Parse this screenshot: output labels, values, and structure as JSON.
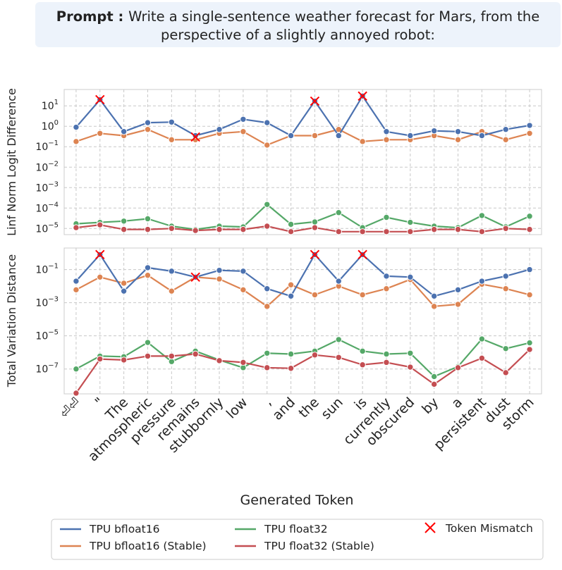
{
  "prompt": {
    "label": "Prompt",
    "line1": "Write a single-sentence weather forecast for Mars, from the",
    "line2": "perspective of a slightly annoyed robot:"
  },
  "chart_data": [
    {
      "type": "line",
      "ylabel": "Linf Norm Logit Difference",
      "yscale": "log",
      "ylim": [
        4e-06,
        60
      ],
      "ytick_labels": [
        "10^-5",
        "10^-4",
        "10^-3",
        "10^-2",
        "10^-1",
        "10^0",
        "10^1"
      ],
      "grid": true,
      "categories": [
        "⏎⏎",
        "\"",
        "The",
        "atmospheric",
        "pressure",
        "remains",
        "stubbornly",
        "low",
        ",",
        "and",
        "the",
        "sun",
        "is",
        "currently",
        "obscured",
        "by",
        "a",
        "persistent",
        "dust",
        "storm"
      ],
      "series": [
        {
          "name": "TPU bfloat16",
          "color": "#4c72b0",
          "values": [
            0.9,
            20,
            0.55,
            1.5,
            1.6,
            0.35,
            0.7,
            2.2,
            1.5,
            0.35,
            17,
            0.35,
            30,
            0.55,
            0.35,
            0.6,
            0.55,
            0.35,
            0.7,
            1.1
          ]
        },
        {
          "name": "TPU bfloat16 (Stable)",
          "color": "#dd8452",
          "values": [
            0.18,
            0.45,
            0.35,
            0.7,
            0.22,
            0.22,
            0.45,
            0.55,
            0.12,
            0.35,
            0.35,
            0.7,
            0.18,
            0.22,
            0.22,
            0.35,
            0.22,
            0.55,
            0.22,
            0.45
          ]
        },
        {
          "name": "TPU float32",
          "color": "#55a868",
          "values": [
            1.7e-05,
            2e-05,
            2.3e-05,
            3e-05,
            1.3e-05,
            9e-06,
            1.3e-05,
            1.2e-05,
            0.00015,
            1.6e-05,
            2.1e-05,
            6e-05,
            1.1e-05,
            3.5e-05,
            2e-05,
            1.3e-05,
            1.1e-05,
            4.3e-05,
            1.2e-05,
            4e-05
          ]
        },
        {
          "name": "TPU float32 (Stable)",
          "color": "#c44e52",
          "values": [
            1.1e-05,
            1.5e-05,
            9e-06,
            9e-06,
            1e-05,
            8e-06,
            9e-06,
            9e-06,
            1.3e-05,
            7e-06,
            1.1e-05,
            7e-06,
            7e-06,
            7e-06,
            7e-06,
            9e-06,
            9e-06,
            7e-06,
            1e-05,
            9e-06
          ]
        }
      ],
      "mismatch_points": [
        {
          "x": "\"",
          "y": 20
        },
        {
          "x": "remains",
          "y": 0.3
        },
        {
          "x": "the",
          "y": 17
        },
        {
          "x": "is",
          "y": 30
        }
      ]
    },
    {
      "type": "line",
      "ylabel": "Total Variation Distance",
      "xlabel": "Generated Token",
      "yscale": "log",
      "ylim": [
        3e-09,
        2
      ],
      "ytick_labels": [
        "10^-7",
        "10^-5",
        "10^-3",
        "10^-1"
      ],
      "grid": true,
      "series": [
        {
          "name": "TPU bfloat16",
          "color": "#4c72b0",
          "values": [
            0.02,
            0.8,
            0.005,
            0.13,
            0.08,
            0.035,
            0.09,
            0.08,
            0.007,
            0.0025,
            0.8,
            0.02,
            0.8,
            0.04,
            0.035,
            0.0025,
            0.006,
            0.02,
            0.04,
            0.1
          ]
        },
        {
          "name": "TPU bfloat16 (Stable)",
          "color": "#dd8452",
          "values": [
            0.006,
            0.035,
            0.015,
            0.045,
            0.005,
            0.035,
            0.027,
            0.006,
            0.0006,
            0.012,
            0.003,
            0.01,
            0.003,
            0.007,
            0.025,
            0.0006,
            0.0008,
            0.013,
            0.007,
            0.003
          ]
        },
        {
          "name": "TPU float32",
          "color": "#55a868",
          "values": [
            1e-07,
            6e-07,
            5.5e-07,
            4e-06,
            2.8e-07,
            1.2e-06,
            3.5e-07,
            1.2e-07,
            9e-07,
            8e-07,
            1.2e-06,
            6e-06,
            1.2e-06,
            8e-07,
            9e-07,
            3.5e-08,
            1.4e-07,
            6.5e-06,
            1.7e-06,
            3.8e-06
          ]
        },
        {
          "name": "TPU float32 (Stable)",
          "color": "#c44e52",
          "values": [
            3.5e-09,
            4e-07,
            3.5e-07,
            6e-07,
            6e-07,
            8e-07,
            3.2e-07,
            2.5e-07,
            1.2e-07,
            1.1e-07,
            7e-07,
            5e-07,
            1.8e-07,
            2.5e-07,
            1.3e-07,
            1.2e-08,
            1.2e-07,
            4.5e-07,
            6e-08,
            1.5e-06
          ]
        }
      ],
      "mismatch_points": [
        {
          "x": "\"",
          "y": 0.8
        },
        {
          "x": "remains",
          "y": 0.035
        },
        {
          "x": "the",
          "y": 0.8
        },
        {
          "x": "is",
          "y": 0.8
        }
      ]
    }
  ],
  "legend": {
    "entries": [
      {
        "label": "TPU bfloat16",
        "color": "#4c72b0",
        "kind": "line"
      },
      {
        "label": "TPU bfloat16 (Stable)",
        "color": "#dd8452",
        "kind": "line"
      },
      {
        "label": "TPU float32",
        "color": "#55a868",
        "kind": "line"
      },
      {
        "label": "TPU float32 (Stable)",
        "color": "#c44e52",
        "kind": "line"
      },
      {
        "label": "Token Mismatch",
        "color": "#ff0000",
        "kind": "cross"
      }
    ]
  }
}
